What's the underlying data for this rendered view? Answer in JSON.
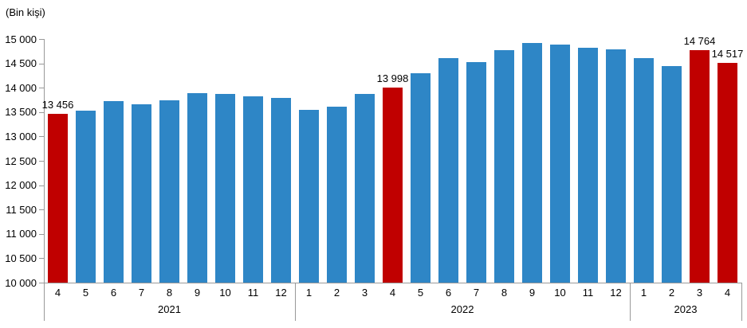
{
  "chart_data": {
    "type": "bar",
    "unit_label": "(Bin kişi)",
    "y_axis": {
      "min": 10000,
      "max": 15000,
      "step": 500,
      "tick_labels": [
        "10 000",
        "10 500",
        "11 000",
        "11 500",
        "12 000",
        "12 500",
        "13 000",
        "13 500",
        "14 000",
        "14 500",
        "15 000"
      ]
    },
    "colors": {
      "default_bar": "#2E86C6",
      "highlight_bar": "#C00000",
      "axis": "#999999",
      "text": "#000000"
    },
    "legend": null,
    "grid": false,
    "groups": [
      {
        "year": "2021",
        "months": [
          "4",
          "5",
          "6",
          "7",
          "8",
          "9",
          "10",
          "11",
          "12"
        ]
      },
      {
        "year": "2022",
        "months": [
          "1",
          "2",
          "3",
          "4",
          "5",
          "6",
          "7",
          "8",
          "9",
          "10",
          "11",
          "12"
        ]
      },
      {
        "year": "2023",
        "months": [
          "1",
          "2",
          "3",
          "4"
        ]
      }
    ],
    "bars": [
      {
        "year": "2021",
        "month": "4",
        "value": 13456,
        "highlight": true,
        "data_label": "13 456"
      },
      {
        "year": "2021",
        "month": "5",
        "value": 13530,
        "highlight": false
      },
      {
        "year": "2021",
        "month": "6",
        "value": 13730,
        "highlight": false
      },
      {
        "year": "2021",
        "month": "7",
        "value": 13660,
        "highlight": false
      },
      {
        "year": "2021",
        "month": "8",
        "value": 13750,
        "highlight": false
      },
      {
        "year": "2021",
        "month": "9",
        "value": 13890,
        "highlight": false
      },
      {
        "year": "2021",
        "month": "10",
        "value": 13870,
        "highlight": false
      },
      {
        "year": "2021",
        "month": "11",
        "value": 13830,
        "highlight": false
      },
      {
        "year": "2021",
        "month": "12",
        "value": 13790,
        "highlight": false
      },
      {
        "year": "2022",
        "month": "1",
        "value": 13550,
        "highlight": false
      },
      {
        "year": "2022",
        "month": "2",
        "value": 13610,
        "highlight": false
      },
      {
        "year": "2022",
        "month": "3",
        "value": 13870,
        "highlight": false
      },
      {
        "year": "2022",
        "month": "4",
        "value": 13998,
        "highlight": true,
        "data_label": "13 998"
      },
      {
        "year": "2022",
        "month": "5",
        "value": 14300,
        "highlight": false
      },
      {
        "year": "2022",
        "month": "6",
        "value": 14610,
        "highlight": false
      },
      {
        "year": "2022",
        "month": "7",
        "value": 14530,
        "highlight": false
      },
      {
        "year": "2022",
        "month": "8",
        "value": 14770,
        "highlight": false
      },
      {
        "year": "2022",
        "month": "9",
        "value": 14920,
        "highlight": false
      },
      {
        "year": "2022",
        "month": "10",
        "value": 14890,
        "highlight": false
      },
      {
        "year": "2022",
        "month": "11",
        "value": 14820,
        "highlight": false
      },
      {
        "year": "2022",
        "month": "12",
        "value": 14790,
        "highlight": false
      },
      {
        "year": "2023",
        "month": "1",
        "value": 14600,
        "highlight": false
      },
      {
        "year": "2023",
        "month": "2",
        "value": 14450,
        "highlight": false
      },
      {
        "year": "2023",
        "month": "3",
        "value": 14764,
        "highlight": true,
        "data_label": "14 764"
      },
      {
        "year": "2023",
        "month": "4",
        "value": 14517,
        "highlight": true,
        "data_label": "14 517"
      }
    ]
  }
}
